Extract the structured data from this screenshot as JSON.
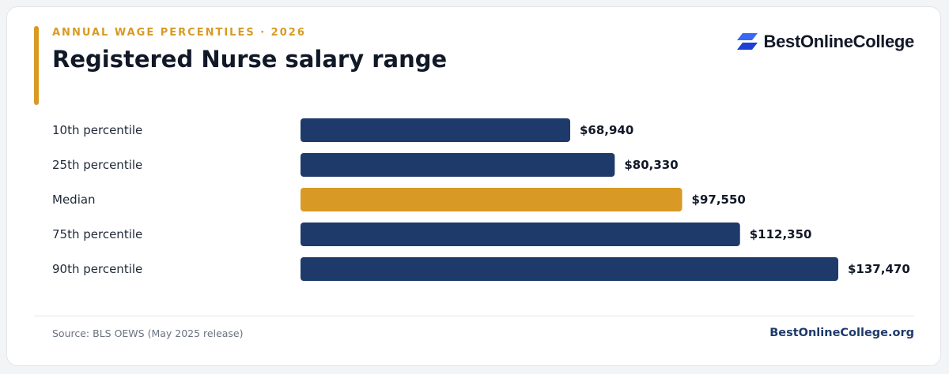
{
  "header": {
    "eyebrow": "ANNUAL WAGE PERCENTILES · 2026",
    "title": "Registered Nurse salary range"
  },
  "brand": {
    "name": "BestOnlineCollege",
    "icon": "stacked-parallelogram-logo"
  },
  "footer": {
    "source": "Source: BLS OEWS (May 2025 release)",
    "site": "BestOnlineCollege.org"
  },
  "colors": {
    "accent": "#d89a24",
    "bar": "#1e3a6b",
    "highlight": "#d89a24",
    "label": "#1f2937",
    "value": "#111827",
    "logo_dark": "#1d3fd6",
    "logo_light": "#3a67f5"
  },
  "chart_data": {
    "type": "bar",
    "orientation": "horizontal",
    "title": "Registered Nurse salary range",
    "xlim": [
      0,
      137470
    ],
    "grid": false,
    "categories": [
      "10th percentile",
      "25th percentile",
      "Median",
      "75th percentile",
      "90th percentile"
    ],
    "values": [
      68940,
      80330,
      97550,
      112350,
      137470
    ],
    "value_labels": [
      "$68,940",
      "$80,330",
      "$97,550",
      "$112,350",
      "$137,470"
    ],
    "highlighted_category": "Median"
  }
}
